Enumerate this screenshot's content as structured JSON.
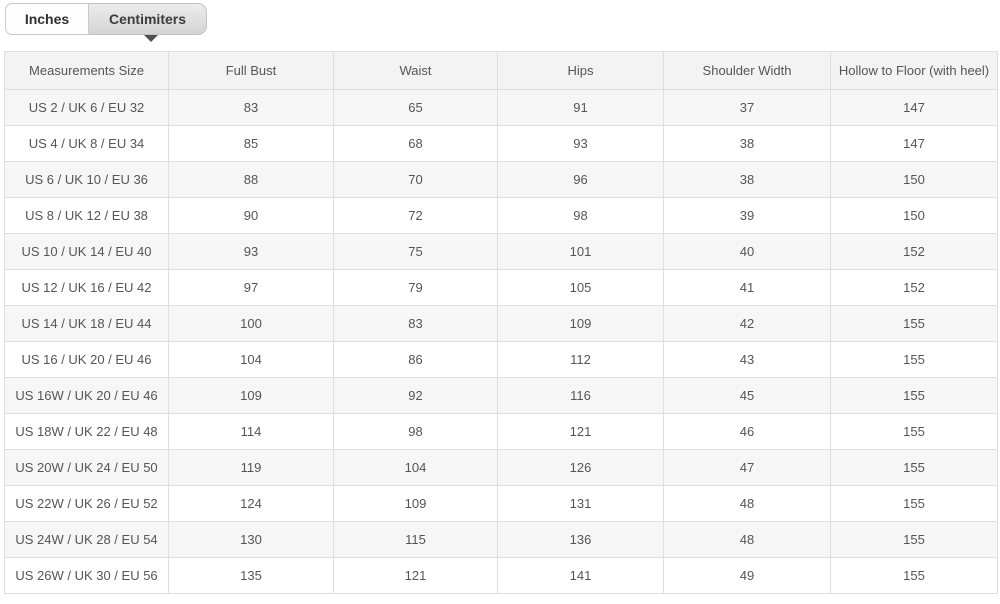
{
  "tabs": [
    {
      "label": "Inches",
      "active": false
    },
    {
      "label": "Centimiters",
      "active": true
    }
  ],
  "table": {
    "headers": [
      "Measurements Size",
      "Full Bust",
      "Waist",
      "Hips",
      "Shoulder Width",
      "Hollow to Floor (with heel)"
    ],
    "rows": [
      [
        "US 2 / UK 6 / EU 32",
        "83",
        "65",
        "91",
        "37",
        "147"
      ],
      [
        "US 4 / UK 8 / EU 34",
        "85",
        "68",
        "93",
        "38",
        "147"
      ],
      [
        "US 6 / UK 10 / EU 36",
        "88",
        "70",
        "96",
        "38",
        "150"
      ],
      [
        "US 8 / UK 12 / EU 38",
        "90",
        "72",
        "98",
        "39",
        "150"
      ],
      [
        "US 10 / UK 14 / EU 40",
        "93",
        "75",
        "101",
        "40",
        "152"
      ],
      [
        "US 12 / UK 16 / EU 42",
        "97",
        "79",
        "105",
        "41",
        "152"
      ],
      [
        "US 14 / UK 18 / EU 44",
        "100",
        "83",
        "109",
        "42",
        "155"
      ],
      [
        "US 16 / UK 20 / EU 46",
        "104",
        "86",
        "112",
        "43",
        "155"
      ],
      [
        "US 16W / UK 20 / EU 46",
        "109",
        "92",
        "116",
        "45",
        "155"
      ],
      [
        "US 18W / UK 22 / EU 48",
        "114",
        "98",
        "121",
        "46",
        "155"
      ],
      [
        "US 20W / UK 24 / EU 50",
        "119",
        "104",
        "126",
        "47",
        "155"
      ],
      [
        "US 22W / UK 26 / EU 52",
        "124",
        "109",
        "131",
        "48",
        "155"
      ],
      [
        "US 24W / UK 28 / EU 54",
        "130",
        "115",
        "136",
        "48",
        "155"
      ],
      [
        "US 26W / UK 30 / EU 56",
        "135",
        "121",
        "141",
        "49",
        "155"
      ]
    ]
  },
  "colors": {
    "row_stripe": "#f6f6f6",
    "header_bg": "#f3f3f3",
    "cell_border": "#dedede",
    "text": "#555555",
    "active_tab_bg": "#d4d4d4"
  }
}
